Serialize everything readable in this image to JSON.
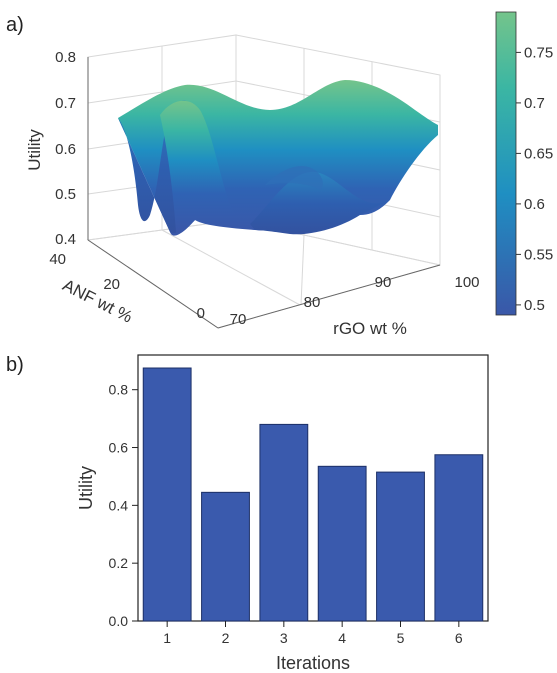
{
  "panels": {
    "a_label": "a)",
    "b_label": "b)"
  },
  "chart_data": [
    {
      "type": "surface3d",
      "xlabel": "rGO wt %",
      "ylabel": "ANF wt %",
      "zlabel": "Utility",
      "x_ticks": [
        70,
        80,
        90,
        100
      ],
      "y_ticks": [
        0,
        20,
        40
      ],
      "z_ticks": [
        0.4,
        0.5,
        0.6,
        0.7,
        0.8
      ],
      "x_range": [
        70,
        100
      ],
      "y_range": [
        0,
        40
      ],
      "z_range": [
        0.4,
        0.8
      ],
      "grid": true,
      "colorbar": {
        "ticks": [
          0.5,
          0.55,
          0.6,
          0.65,
          0.7,
          0.75
        ],
        "range": [
          0.49,
          0.79
        ],
        "colors": [
          "#3a57a8",
          "#1f8fc2",
          "#3bb6a3",
          "#74c48b"
        ]
      },
      "surface_colors": [
        "#3a57a8",
        "#1f8fc2",
        "#3bb6a3",
        "#74c48b"
      ]
    },
    {
      "type": "bar",
      "xlabel": "Iterations",
      "ylabel": "Utility",
      "categories": [
        "1",
        "2",
        "3",
        "4",
        "5",
        "6"
      ],
      "values": [
        0.875,
        0.445,
        0.68,
        0.535,
        0.515,
        0.575
      ],
      "ylim": [
        0,
        0.92
      ],
      "y_ticks": [
        0.0,
        0.2,
        0.4,
        0.6,
        0.8
      ],
      "bar_color": "#3a5aad"
    }
  ]
}
